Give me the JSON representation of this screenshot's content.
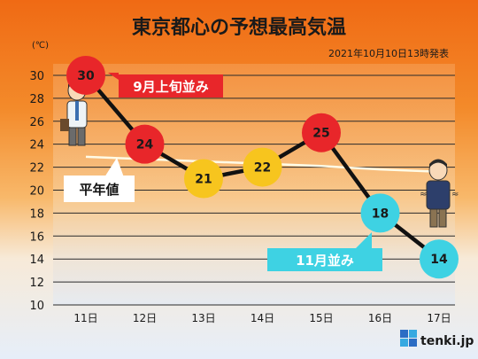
{
  "title": "東京都心の予想最高気温",
  "issued": "2021年10月10日13時発表",
  "unit": "(℃)",
  "brand": "tenki.jp",
  "colors": {
    "hot": "#e8262a",
    "warm": "#f7c51e",
    "cool": "#3ed2e3",
    "normal_line": "#fffbe6",
    "forecast_line": "#111111"
  },
  "callouts": {
    "september": "9月上旬並み",
    "normal": "平年値",
    "november": "11月並み"
  },
  "chart_data": {
    "type": "line",
    "title": "東京都心の予想最高気温",
    "categories": [
      "11日",
      "12日",
      "13日",
      "14日",
      "15日",
      "16日",
      "17日"
    ],
    "series": [
      {
        "values": [
          30,
          24,
          21,
          22,
          25,
          18,
          14
        ],
        "point_colors": [
          "hot",
          "hot",
          "warm",
          "warm",
          "hot",
          "cool",
          "cool"
        ]
      },
      {
        "values": [
          22.9,
          22.7,
          22.5,
          22.3,
          22.1,
          21.8,
          21.6
        ]
      }
    ],
    "ylim": [
      10,
      31
    ],
    "yticks": [
      10,
      12,
      14,
      16,
      18,
      20,
      22,
      24,
      26,
      28,
      30
    ],
    "grid": true,
    "ylabel": "(℃)"
  }
}
